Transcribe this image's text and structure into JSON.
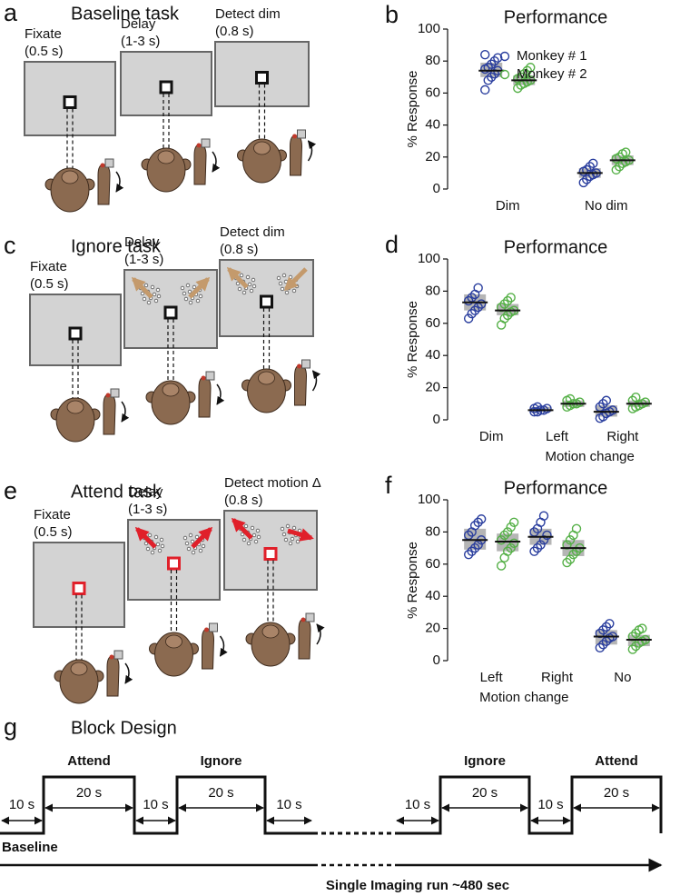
{
  "panels": {
    "a": {
      "label": "a",
      "title": "Baseline task",
      "stages": [
        {
          "name": "Fixate",
          "time": "(0.5 s)"
        },
        {
          "name": "Delay",
          "time": "(1-3 s)"
        },
        {
          "name": "Detect dim",
          "time": "(0.8 s)"
        }
      ]
    },
    "c": {
      "label": "c",
      "title": "Ignore task",
      "stages": [
        {
          "name": "Fixate",
          "time": "(0.5 s)"
        },
        {
          "name": "Delay",
          "time": "(1-3 s)"
        },
        {
          "name": "Detect dim",
          "time": "(0.8 s)"
        }
      ]
    },
    "e": {
      "label": "e",
      "title": "Attend task",
      "stages": [
        {
          "name": "Fixate",
          "time": "(0.5 s)"
        },
        {
          "name": "Delay",
          "time": "(1-3 s)"
        },
        {
          "name": "Detect motion Δ",
          "time": "(0.8 s)"
        }
      ]
    },
    "g": {
      "label": "g",
      "title": "Block Design",
      "blocks": [
        "Attend",
        "Ignore",
        "Ignore",
        "Attend"
      ],
      "block_duration": "20 s",
      "rest_duration": "10 s",
      "baseline": "Baseline",
      "run": "Single Imaging run ~480 sec"
    }
  },
  "chart_data": [
    {
      "type": "strip",
      "panel_label": "b",
      "title": "Performance",
      "y_label": "% Response",
      "categories": [
        "Dim",
        "No dim"
      ],
      "ylim": [
        0,
        100
      ],
      "yticks": [
        0,
        20,
        40,
        60,
        80,
        100
      ],
      "legend": "upper right",
      "series": [
        {
          "name": "Monkey # 1",
          "color": "#2a3e9e",
          "values": [
            74,
            10
          ],
          "box_low": [
            70,
            7
          ],
          "box_high": [
            79,
            13
          ],
          "points": [
            [
              62,
              68,
              70,
              72,
              74,
              75,
              76,
              78,
              80,
              82,
              84
            ],
            [
              4,
              6,
              8,
              9,
              10,
              11,
              12,
              14,
              16
            ]
          ]
        },
        {
          "name": "Monkey # 2",
          "color": "#55b047",
          "values": [
            68,
            18
          ],
          "box_low": [
            65,
            15
          ],
          "box_high": [
            71,
            21
          ],
          "points": [
            [
              63,
              65,
              66,
              67,
              68,
              69,
              70,
              72,
              74,
              76
            ],
            [
              12,
              14,
              16,
              17,
              18,
              19,
              20,
              22,
              23
            ]
          ]
        }
      ]
    },
    {
      "type": "strip",
      "panel_label": "d",
      "title": "Performance",
      "y_label": "% Response",
      "x_label": "Motion change",
      "categories": [
        "Dim",
        "Left",
        "Right"
      ],
      "ylim": [
        0,
        100
      ],
      "yticks": [
        0,
        20,
        40,
        60,
        80,
        100
      ],
      "series": [
        {
          "color": "#2a3e9e",
          "values": [
            73,
            6,
            5
          ],
          "box_low": [
            68,
            5,
            2
          ],
          "box_high": [
            78,
            8,
            9
          ],
          "points": [
            [
              63,
              66,
              68,
              70,
              72,
              74,
              76,
              78,
              82
            ],
            [
              5,
              5,
              6,
              6,
              7,
              7,
              8
            ],
            [
              1,
              2,
              4,
              5,
              6,
              8,
              10,
              12
            ]
          ]
        },
        {
          "color": "#55b047",
          "values": [
            68,
            10,
            10
          ],
          "box_low": [
            65,
            8,
            8
          ],
          "box_high": [
            72,
            12,
            12
          ],
          "points": [
            [
              59,
              63,
              65,
              67,
              68,
              70,
              72,
              74,
              76
            ],
            [
              8,
              9,
              10,
              10,
              11,
              12,
              13
            ],
            [
              7,
              8,
              9,
              10,
              11,
              12,
              14
            ]
          ]
        }
      ]
    },
    {
      "type": "strip",
      "panel_label": "f",
      "title": "Performance",
      "y_label": "% Response",
      "x_label": "Motion change",
      "categories": [
        "Left",
        "Right",
        "No"
      ],
      "ylim": [
        0,
        100
      ],
      "yticks": [
        0,
        20,
        40,
        60,
        80,
        100
      ],
      "series": [
        {
          "color": "#2a3e9e",
          "values": [
            75,
            77,
            15
          ],
          "box_low": [
            69,
            72,
            10
          ],
          "box_high": [
            82,
            82,
            19
          ],
          "points": [
            [
              66,
              68,
              70,
              72,
              75,
              78,
              80,
              84,
              86,
              88
            ],
            [
              68,
              70,
              72,
              75,
              78,
              80,
              82,
              86,
              90
            ],
            [
              8,
              10,
              12,
              14,
              15,
              17,
              19,
              21,
              23
            ]
          ]
        },
        {
          "color": "#55b047",
          "values": [
            74,
            70,
            13
          ],
          "box_low": [
            68,
            65,
            9
          ],
          "box_high": [
            79,
            75,
            16
          ],
          "points": [
            [
              59,
              64,
              68,
              70,
              73,
              75,
              78,
              80,
              83,
              86
            ],
            [
              61,
              63,
              66,
              68,
              70,
              72,
              75,
              78,
              82
            ],
            [
              7,
              9,
              11,
              12,
              13,
              15,
              17,
              19,
              20
            ]
          ]
        }
      ]
    }
  ]
}
